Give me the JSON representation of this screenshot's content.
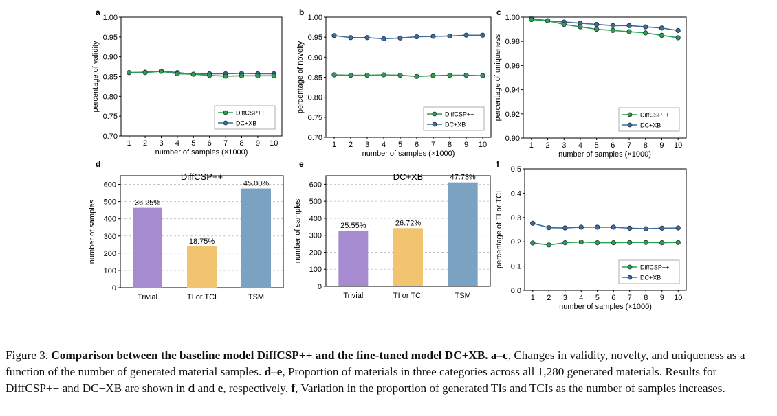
{
  "colors": {
    "diffcsp": "#2e9e4f",
    "dcxb": "#3f6c9c",
    "trivial": "#a78bd0",
    "ti_tci": "#f3c46f",
    "tsm": "#7aa2c2"
  },
  "chart_data": [
    {
      "panel": "a",
      "type": "line",
      "xlabel": "number of samples (×1000)",
      "ylabel": "percentage of validity",
      "x": [
        1,
        2,
        3,
        4,
        5,
        6,
        7,
        8,
        9,
        10
      ],
      "ylim": [
        0.7,
        1.0
      ],
      "yticks": [
        "0.70",
        "0.75",
        "0.80",
        "0.85",
        "0.90",
        "0.95",
        "1.00"
      ],
      "legend": "lower-right",
      "series": [
        {
          "name": "DiffCSP++",
          "values": [
            0.86,
            0.86,
            0.863,
            0.857,
            0.856,
            0.853,
            0.851,
            0.852,
            0.852,
            0.852
          ]
        },
        {
          "name": "DC+XB",
          "values": [
            0.86,
            0.861,
            0.864,
            0.86,
            0.856,
            0.857,
            0.857,
            0.858,
            0.857,
            0.857
          ]
        }
      ]
    },
    {
      "panel": "b",
      "type": "line",
      "xlabel": "number of samples (×1000)",
      "ylabel": "percentage of novelty",
      "x": [
        1,
        2,
        3,
        4,
        5,
        6,
        7,
        8,
        9,
        10
      ],
      "ylim": [
        0.7,
        1.0
      ],
      "yticks": [
        "0.70",
        "0.75",
        "0.80",
        "0.85",
        "0.90",
        "0.95",
        "1.00"
      ],
      "legend": "lower-right",
      "series": [
        {
          "name": "DiffCSP++",
          "values": [
            0.856,
            0.855,
            0.855,
            0.856,
            0.855,
            0.852,
            0.854,
            0.855,
            0.855,
            0.854
          ]
        },
        {
          "name": "DC+XB",
          "values": [
            0.954,
            0.949,
            0.949,
            0.946,
            0.948,
            0.951,
            0.952,
            0.953,
            0.955,
            0.955
          ]
        }
      ]
    },
    {
      "panel": "c",
      "type": "line",
      "xlabel": "number of samples (×1000)",
      "ylabel": "percentage of uniqueness",
      "x": [
        1,
        2,
        3,
        4,
        5,
        6,
        7,
        8,
        9,
        10
      ],
      "ylim": [
        0.9,
        1.0
      ],
      "yticks": [
        "0.90",
        "0.92",
        "0.94",
        "0.96",
        "0.98",
        "1.00"
      ],
      "legend": "lower-right",
      "series": [
        {
          "name": "DiffCSP++",
          "values": [
            0.998,
            0.997,
            0.994,
            0.992,
            0.99,
            0.989,
            0.988,
            0.987,
            0.985,
            0.983
          ]
        },
        {
          "name": "DC+XB",
          "values": [
            0.999,
            0.997,
            0.996,
            0.995,
            0.994,
            0.993,
            0.993,
            0.992,
            0.991,
            0.989
          ]
        }
      ]
    },
    {
      "panel": "d",
      "type": "bar",
      "title": "DiffCSP++",
      "ylabel": "number of samples",
      "ylim": [
        0,
        650
      ],
      "yticks": [
        "0",
        "100",
        "200",
        "300",
        "400",
        "500",
        "600"
      ],
      "categories": [
        "Trivial",
        "TI or TCI",
        "TSM"
      ],
      "values": [
        464,
        240,
        576
      ],
      "labels": [
        "36.25%",
        "18.75%",
        "45.00%"
      ]
    },
    {
      "panel": "e",
      "type": "bar",
      "title": "DC+XB",
      "ylabel": "number of samples",
      "ylim": [
        0,
        650
      ],
      "yticks": [
        "0",
        "100",
        "200",
        "300",
        "400",
        "500",
        "600"
      ],
      "categories": [
        "Trivial",
        "TI or TCI",
        "TSM"
      ],
      "values": [
        327,
        342,
        611
      ],
      "labels": [
        "25.55%",
        "26.72%",
        "47.73%"
      ]
    },
    {
      "panel": "f",
      "type": "line",
      "xlabel": "number of samples (×1000)",
      "ylabel": "percentage of TI or TCI",
      "x": [
        1,
        2,
        3,
        4,
        5,
        6,
        7,
        8,
        9,
        10
      ],
      "ylim": [
        0.0,
        0.5
      ],
      "yticks": [
        "0.0",
        "0.1",
        "0.2",
        "0.3",
        "0.4",
        "0.5"
      ],
      "legend": "lower-right",
      "series": [
        {
          "name": "DiffCSP++",
          "values": [
            0.195,
            0.187,
            0.196,
            0.199,
            0.196,
            0.196,
            0.197,
            0.197,
            0.196,
            0.197
          ]
        },
        {
          "name": "DC+XB",
          "values": [
            0.276,
            0.258,
            0.257,
            0.26,
            0.26,
            0.26,
            0.256,
            0.254,
            0.256,
            0.257
          ]
        }
      ]
    }
  ],
  "caption": {
    "figure_label": "Figure 3.",
    "bold_title": "Comparison between the baseline model DiffCSP++ and the fine-tuned model DC+XB.",
    "seg1_bold": "a",
    "seg1_dash": "–",
    "seg1_bold2": "c",
    "seg1_text": ", Changes in validity, novelty, and uniqueness as a function of the number of generated material samples.",
    "seg2_bold": "d",
    "seg2_dash": "–",
    "seg2_bold2": "e",
    "seg2_text": ", Proportion of materials in three categories across all 1,280 generated materials. Results for DiffCSP++ and DC+XB are shown in",
    "seg2_d": "d",
    "seg2_and": "and",
    "seg2_e": "e",
    "seg2_end": ", respectively.",
    "seg3_bold": "f",
    "seg3_text": ", Variation in the proportion of generated TIs and TCIs as the number of samples increases."
  }
}
